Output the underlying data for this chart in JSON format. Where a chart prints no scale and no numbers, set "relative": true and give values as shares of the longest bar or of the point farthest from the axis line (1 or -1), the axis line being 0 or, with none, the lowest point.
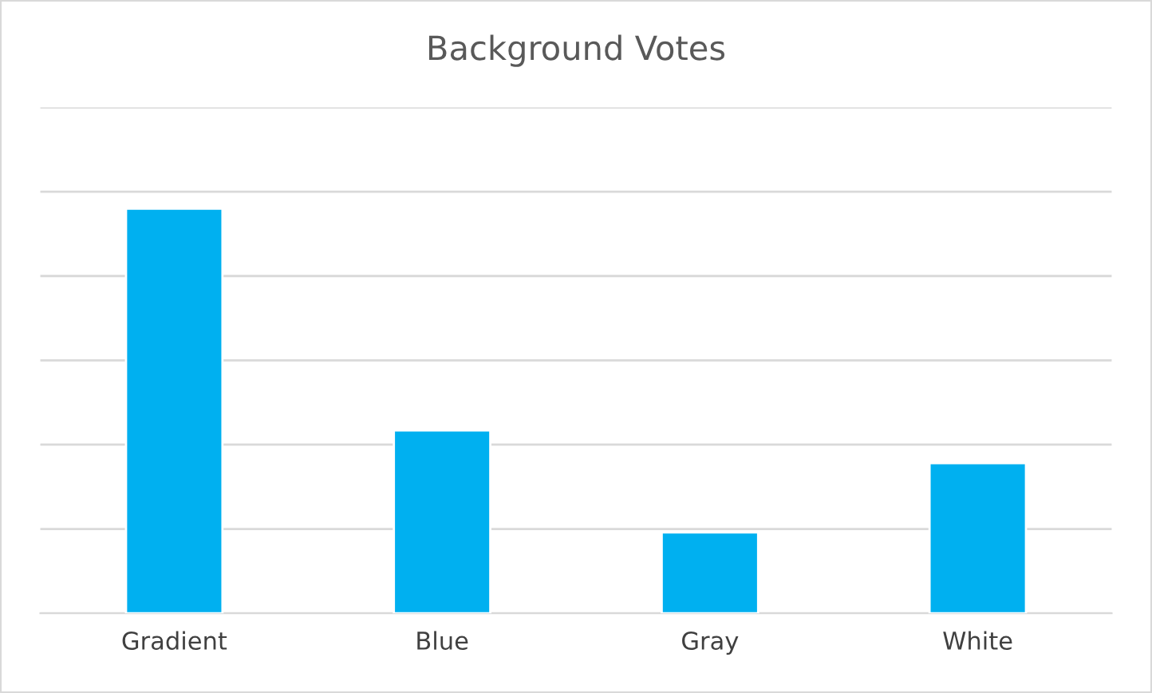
{
  "chart_data": {
    "type": "bar",
    "title": "Background Votes",
    "relative": true,
    "categories": [
      "Gradient",
      "Blue",
      "Gray",
      "White"
    ],
    "values": [
      1,
      0.452,
      0.2,
      0.371
    ],
    "color": "#00b0f0",
    "grid": "y",
    "legend": false
  }
}
